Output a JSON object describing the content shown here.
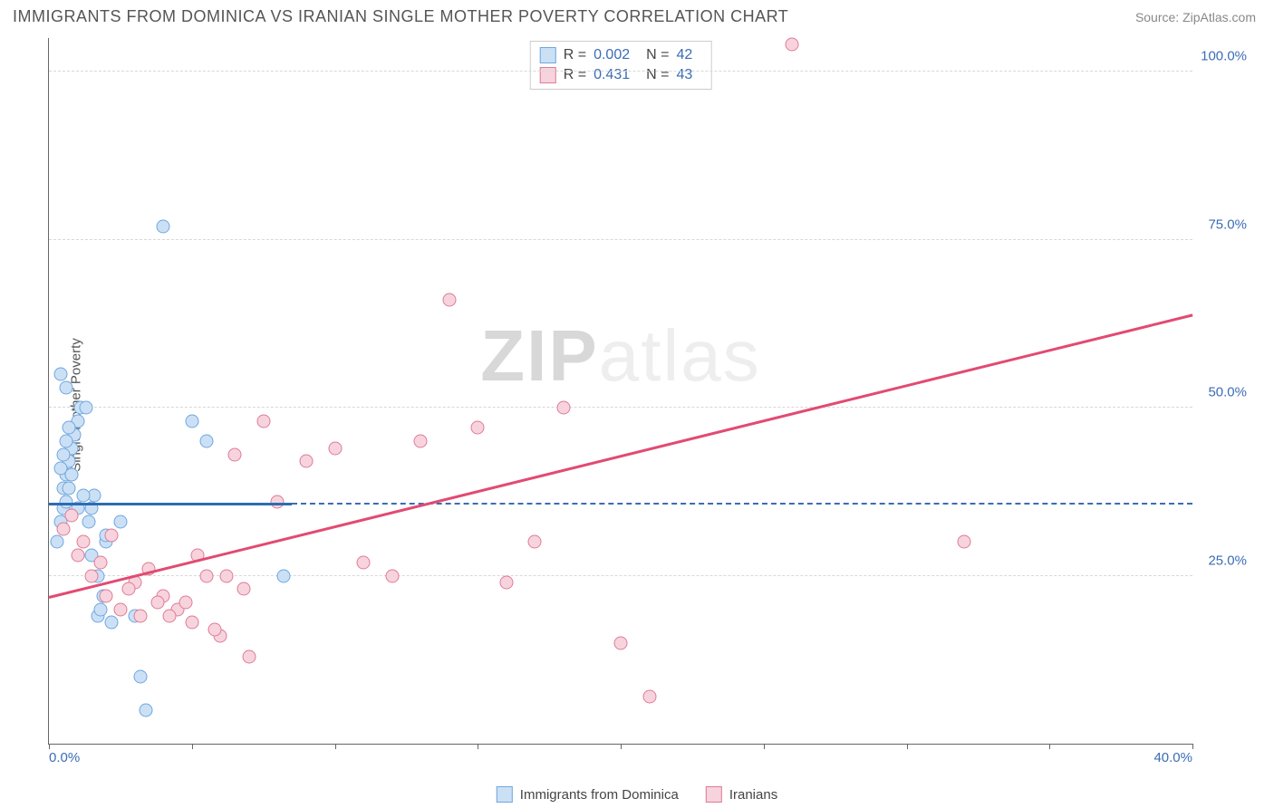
{
  "header": {
    "title": "IMMIGRANTS FROM DOMINICA VS IRANIAN SINGLE MOTHER POVERTY CORRELATION CHART",
    "source_prefix": "Source: ",
    "source": "ZipAtlas.com"
  },
  "chart": {
    "type": "scatter",
    "y_axis_label": "Single Mother Poverty",
    "x_range": [
      0,
      40
    ],
    "y_range": [
      0,
      105
    ],
    "x_ticks": [
      0,
      5,
      10,
      15,
      20,
      25,
      30,
      35,
      40
    ],
    "x_tick_labels": {
      "0": "0.0%",
      "40": "40.0%"
    },
    "y_ticks": [
      25,
      50,
      75,
      100
    ],
    "y_tick_labels": {
      "25": "25.0%",
      "50": "50.0%",
      "75": "75.0%",
      "100": "100.0%"
    },
    "grid_color": "#d8d8d8",
    "axis_color": "#666666",
    "background": "#ffffff",
    "watermark": {
      "zip": "ZIP",
      "atlas": "atlas"
    },
    "series": [
      {
        "name": "Immigrants from Dominica",
        "fill": "#cce0f5",
        "stroke": "#6da7e0",
        "trend_color": "#2d6cb3",
        "trend": {
          "x1": 0,
          "y1": 35.8,
          "x2": 8.5,
          "y2": 35.8,
          "dashed_continue": true
        },
        "R_label": "R =",
        "R": "0.002",
        "N_label": "N =",
        "N": "42",
        "points": [
          [
            0.3,
            30
          ],
          [
            0.4,
            33
          ],
          [
            0.5,
            38
          ],
          [
            0.6,
            40
          ],
          [
            0.7,
            42
          ],
          [
            0.8,
            44
          ],
          [
            0.9,
            46
          ],
          [
            1.0,
            48
          ],
          [
            1.1,
            50
          ],
          [
            0.5,
            35
          ],
          [
            0.6,
            36
          ],
          [
            0.7,
            38
          ],
          [
            0.8,
            40
          ],
          [
            0.4,
            41
          ],
          [
            0.5,
            43
          ],
          [
            0.6,
            45
          ],
          [
            0.7,
            47
          ],
          [
            1.3,
            50
          ],
          [
            1.4,
            33
          ],
          [
            1.5,
            35
          ],
          [
            1.6,
            37
          ],
          [
            1.7,
            19
          ],
          [
            1.8,
            20
          ],
          [
            1.9,
            22
          ],
          [
            2.0,
            30
          ],
          [
            2.2,
            18
          ],
          [
            2.5,
            33
          ],
          [
            3.0,
            19
          ],
          [
            3.2,
            10
          ],
          [
            3.4,
            5
          ],
          [
            4.0,
            77
          ],
          [
            5.0,
            48
          ],
          [
            5.5,
            45
          ],
          [
            8.2,
            25
          ],
          [
            0.4,
            55
          ],
          [
            0.6,
            53
          ],
          [
            0.8,
            40
          ],
          [
            1.0,
            35
          ],
          [
            1.2,
            37
          ],
          [
            1.5,
            28
          ],
          [
            1.7,
            25
          ],
          [
            2.0,
            31
          ]
        ]
      },
      {
        "name": "Iranians",
        "fill": "#f7d4dd",
        "stroke": "#e07a95",
        "trend_color": "#e24a72",
        "trend": {
          "x1": 0,
          "y1": 22,
          "x2": 40,
          "y2": 64
        },
        "R_label": "R =",
        "R": "0.431",
        "N_label": "N =",
        "N": "43",
        "points": [
          [
            0.5,
            32
          ],
          [
            1.0,
            28
          ],
          [
            1.5,
            25
          ],
          [
            2.0,
            22
          ],
          [
            2.5,
            20
          ],
          [
            3.0,
            24
          ],
          [
            3.5,
            26
          ],
          [
            4.0,
            22
          ],
          [
            4.5,
            20
          ],
          [
            5.0,
            18
          ],
          [
            5.2,
            28
          ],
          [
            5.5,
            25
          ],
          [
            6.0,
            16
          ],
          [
            6.5,
            43
          ],
          [
            7.0,
            13
          ],
          [
            7.5,
            48
          ],
          [
            8.0,
            36
          ],
          [
            9.0,
            42
          ],
          [
            10.0,
            44
          ],
          [
            11.0,
            27
          ],
          [
            12.0,
            25
          ],
          [
            13.0,
            45
          ],
          [
            14.0,
            66
          ],
          [
            15.0,
            47
          ],
          [
            16.0,
            24
          ],
          [
            17.0,
            30
          ],
          [
            18.0,
            50
          ],
          [
            20.0,
            15
          ],
          [
            21.0,
            7
          ],
          [
            26.0,
            104
          ],
          [
            32.0,
            30
          ],
          [
            4.2,
            19
          ],
          [
            4.8,
            21
          ],
          [
            3.2,
            19
          ],
          [
            3.8,
            21
          ],
          [
            2.8,
            23
          ],
          [
            6.2,
            25
          ],
          [
            6.8,
            23
          ],
          [
            1.2,
            30
          ],
          [
            1.8,
            27
          ],
          [
            0.8,
            34
          ],
          [
            2.2,
            31
          ],
          [
            5.8,
            17
          ]
        ]
      }
    ],
    "legend": [
      {
        "label": "Immigrants from Dominica",
        "fill": "#cce0f5",
        "stroke": "#6da7e0"
      },
      {
        "label": "Iranians",
        "fill": "#f7d4dd",
        "stroke": "#e07a95"
      }
    ]
  }
}
